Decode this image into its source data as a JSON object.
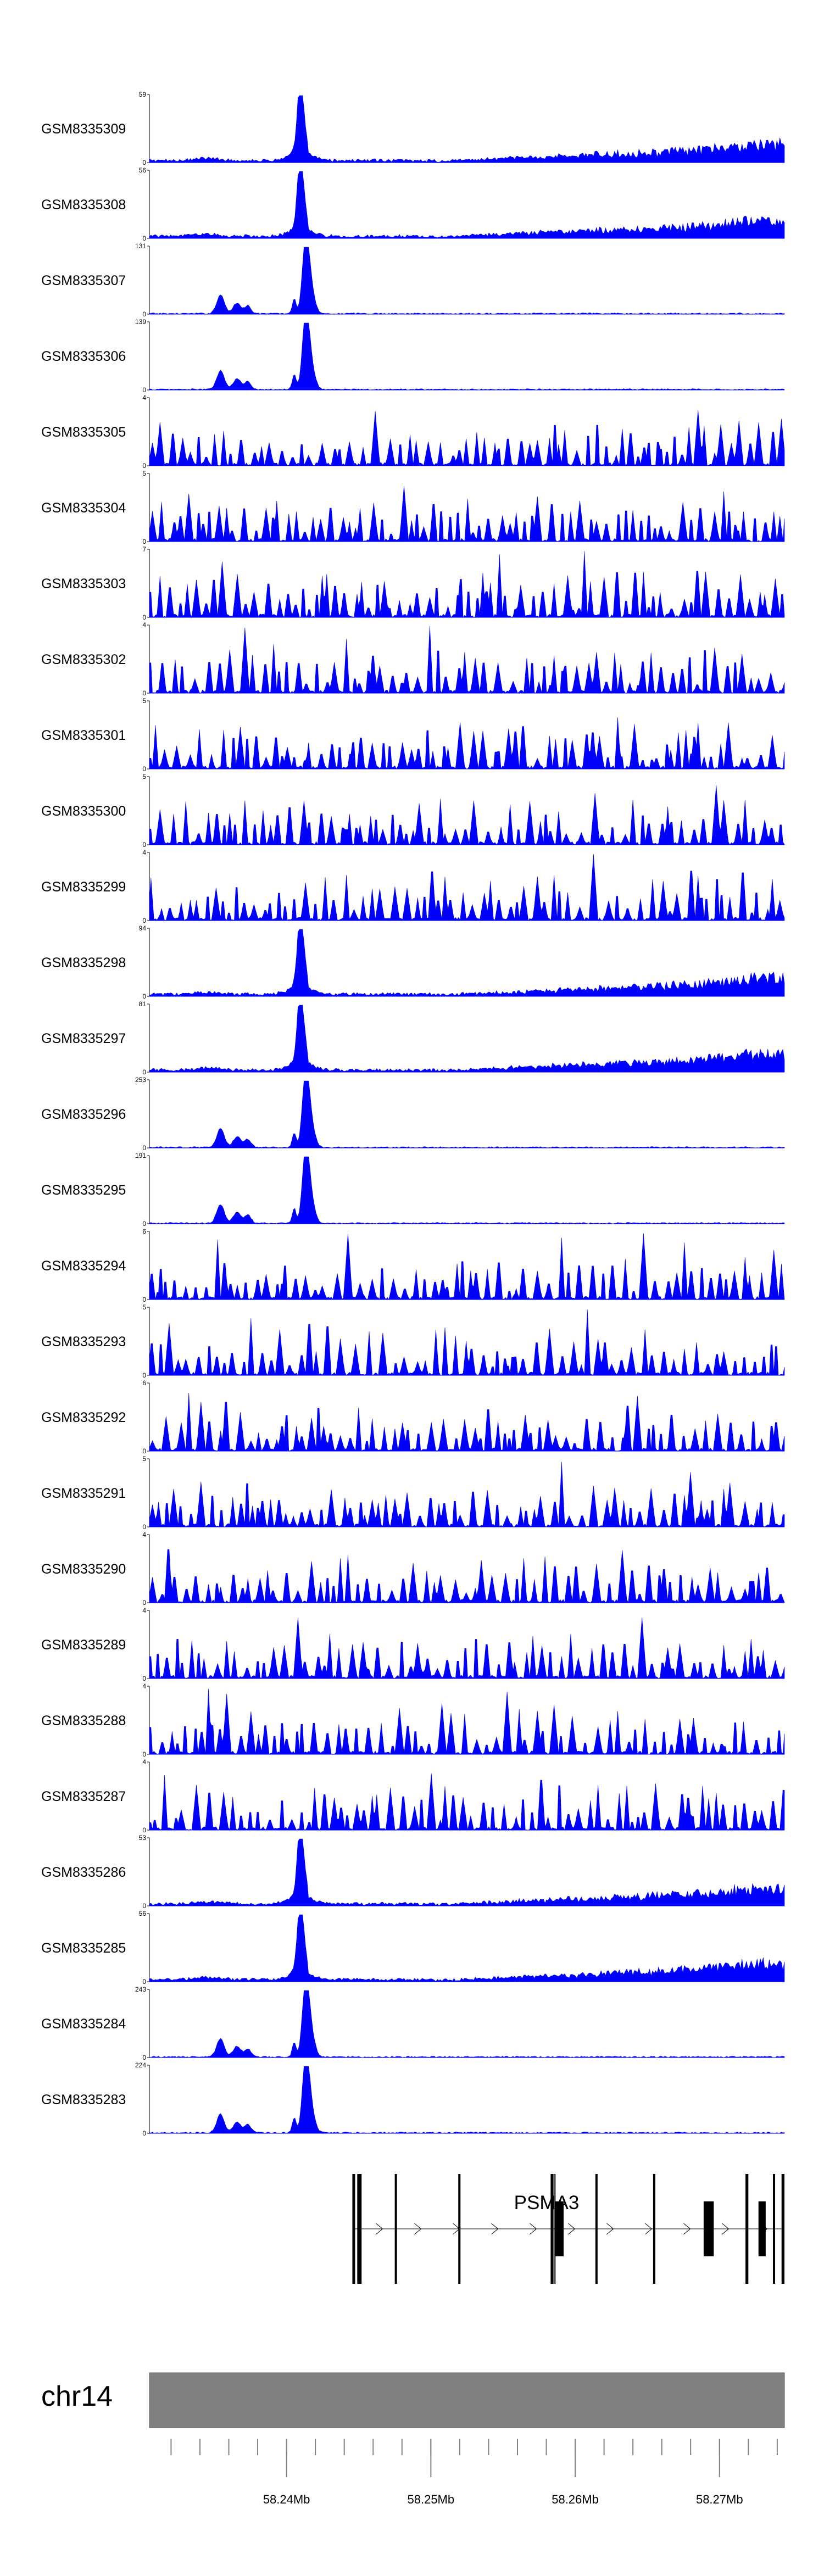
{
  "chart_data": {
    "type": "area",
    "color": "#0000ff",
    "axis": {
      "chromosome": "chr14",
      "start_mb": 58.2305,
      "end_mb": 58.2745,
      "ticks": [
        "58.24Mb",
        "58.25Mb",
        "58.26Mb",
        "58.27Mb"
      ]
    },
    "tracks": [
      {
        "name": "GSM8335309",
        "ymax": 59,
        "ymin": 0,
        "profile": "tall"
      },
      {
        "name": "GSM8335308",
        "ymax": 56,
        "ymin": 0,
        "profile": "tall"
      },
      {
        "name": "GSM8335307",
        "ymax": 131,
        "ymin": 0,
        "profile": "clustered"
      },
      {
        "name": "GSM8335306",
        "ymax": 139,
        "ymin": 0,
        "profile": "clustered"
      },
      {
        "name": "GSM8335305",
        "ymax": 4,
        "ymin": 0,
        "profile": "noise"
      },
      {
        "name": "GSM8335304",
        "ymax": 5,
        "ymin": 0,
        "profile": "noise"
      },
      {
        "name": "GSM8335303",
        "ymax": 7,
        "ymin": 0,
        "profile": "noise"
      },
      {
        "name": "GSM8335302",
        "ymax": 4,
        "ymin": 0,
        "profile": "noise"
      },
      {
        "name": "GSM8335301",
        "ymax": 5,
        "ymin": 0,
        "profile": "noise"
      },
      {
        "name": "GSM8335300",
        "ymax": 5,
        "ymin": 0,
        "profile": "noise"
      },
      {
        "name": "GSM8335299",
        "ymax": 4,
        "ymin": 0,
        "profile": "noise"
      },
      {
        "name": "GSM8335298",
        "ymax": 94,
        "ymin": 0,
        "profile": "tall"
      },
      {
        "name": "GSM8335297",
        "ymax": 81,
        "ymin": 0,
        "profile": "tall"
      },
      {
        "name": "GSM8335296",
        "ymax": 253,
        "ymin": 0,
        "profile": "clustered"
      },
      {
        "name": "GSM8335295",
        "ymax": 191,
        "ymin": 0,
        "profile": "clustered"
      },
      {
        "name": "GSM8335294",
        "ymax": 6,
        "ymin": 0,
        "profile": "noise"
      },
      {
        "name": "GSM8335293",
        "ymax": 5,
        "ymin": 0,
        "profile": "noise"
      },
      {
        "name": "GSM8335292",
        "ymax": 6,
        "ymin": 0,
        "profile": "noise"
      },
      {
        "name": "GSM8335291",
        "ymax": 5,
        "ymin": 0,
        "profile": "noise"
      },
      {
        "name": "GSM8335290",
        "ymax": 4,
        "ymin": 0,
        "profile": "noise"
      },
      {
        "name": "GSM8335289",
        "ymax": 4,
        "ymin": 0,
        "profile": "noise"
      },
      {
        "name": "GSM8335288",
        "ymax": 4,
        "ymin": 0,
        "profile": "noise"
      },
      {
        "name": "GSM8335287",
        "ymax": 4,
        "ymin": 0,
        "profile": "noise"
      },
      {
        "name": "GSM8335286",
        "ymax": 53,
        "ymin": 0,
        "profile": "tall"
      },
      {
        "name": "GSM8335285",
        "ymax": 56,
        "ymin": 0,
        "profile": "tall"
      },
      {
        "name": "GSM8335284",
        "ymax": 243,
        "ymin": 0,
        "profile": "clustered"
      },
      {
        "name": "GSM8335283",
        "ymax": 224,
        "ymin": 0,
        "profile": "clustered"
      }
    ],
    "gene": {
      "name": "PSMA3",
      "strand": "+",
      "start_mb": 58.2446,
      "end_mb": 58.2745,
      "exons_mb": [
        [
          58.2446,
          58.2447
        ],
        [
          58.2449,
          58.2452
        ],
        [
          58.2475,
          58.2476
        ],
        [
          58.2519,
          58.252
        ],
        [
          58.2583,
          58.2585
        ],
        [
          58.2586,
          58.2592
        ],
        [
          58.2614,
          58.2615
        ],
        [
          58.2654,
          58.2655
        ],
        [
          58.2689,
          58.2696
        ],
        [
          58.2718,
          58.272
        ],
        [
          58.2727,
          58.2732
        ],
        [
          58.2737,
          58.2738
        ],
        [
          58.2743,
          58.2745
        ]
      ]
    }
  }
}
